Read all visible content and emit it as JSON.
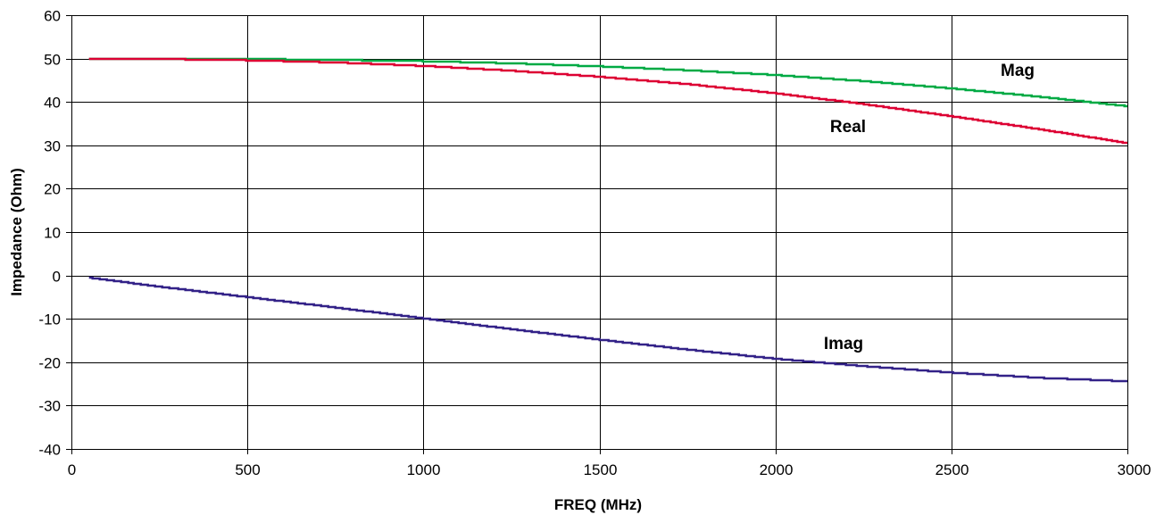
{
  "chart_data": {
    "type": "line",
    "title": "",
    "xlabel": "FREQ (MHz)",
    "ylabel": "Impedance (Ohm)",
    "xlim": [
      0,
      3000
    ],
    "ylim": [
      -40,
      60
    ],
    "x_ticks": [
      0,
      500,
      1000,
      1500,
      2000,
      2500,
      3000
    ],
    "y_ticks": [
      -40,
      -30,
      -20,
      -10,
      0,
      10,
      20,
      30,
      40,
      50,
      60
    ],
    "grid": true,
    "legend": "none",
    "x": [
      50,
      250,
      500,
      750,
      1000,
      1250,
      1500,
      1750,
      2000,
      2250,
      2500,
      2750,
      3000
    ],
    "series": [
      {
        "name": "Mag",
        "color": "#00aa44",
        "values": [
          50.0,
          50.0,
          49.9,
          49.7,
          49.4,
          48.9,
          48.2,
          47.3,
          46.2,
          44.8,
          43.1,
          41.2,
          39.0
        ]
      },
      {
        "name": "Real",
        "color": "#dd0033",
        "values": [
          50.0,
          49.9,
          49.6,
          49.1,
          48.3,
          47.2,
          45.8,
          44.1,
          42.0,
          39.5,
          36.7,
          33.7,
          30.5
        ]
      },
      {
        "name": "Imag",
        "color": "#332288",
        "values": [
          -0.5,
          -2.6,
          -5.0,
          -7.4,
          -9.9,
          -12.4,
          -14.8,
          -17.1,
          -19.2,
          -20.9,
          -22.4,
          -23.6,
          -24.4
        ]
      }
    ]
  }
}
